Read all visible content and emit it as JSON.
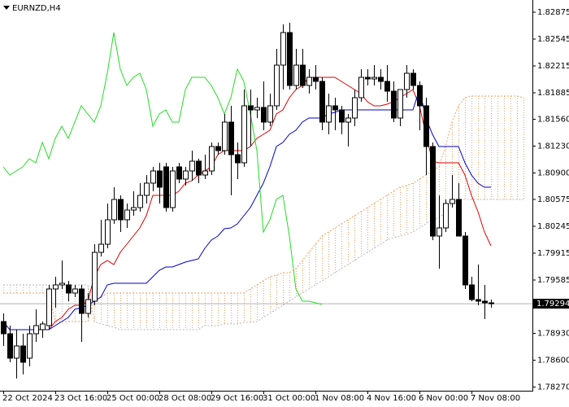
{
  "chart_data": {
    "type": "candlestick",
    "title": "EURNZD,H4",
    "categories": [
      "22 Oct 2024",
      null,
      null,
      null,
      null,
      null,
      null,
      null,
      "23 Oct 16:00",
      null,
      null,
      null,
      null,
      null,
      null,
      null,
      "25 Oct 00:00",
      null,
      null,
      null,
      null,
      null,
      null,
      null,
      "28 Oct 08:00",
      null,
      null,
      null,
      null,
      null,
      null,
      null,
      "29 Oct 16:00",
      null,
      null,
      null,
      null,
      null,
      null,
      null,
      "31 Oct 00:00",
      null,
      null,
      null,
      null,
      null,
      null,
      null,
      "1 Nov 08:00",
      null,
      null,
      null,
      null,
      null,
      null,
      null,
      "4 Nov 16:00",
      null,
      null,
      null,
      null,
      null,
      null,
      null,
      "6 Nov 00:00",
      null,
      null,
      null,
      null,
      null,
      null,
      null,
      "7 Nov 08:00",
      null,
      null,
      null,
      null,
      null,
      null,
      null,
      null,
      null
    ],
    "open": [
      1.79075,
      1.78925,
      1.78625,
      1.78775,
      1.78625,
      1.78925,
      1.78975,
      1.79025,
      1.79475,
      1.79525,
      1.79525,
      1.79425,
      1.79475,
      1.79175,
      1.79325,
      1.79925,
      1.80025,
      1.80325,
      1.80575,
      1.80325,
      1.80445,
      1.80475,
      1.80625,
      1.80775,
      1.80925,
      1.80975,
      1.80475,
      1.80975,
      1.80825,
      1.80925,
      1.81045,
      1.80875,
      1.80925,
      1.81225,
      1.81175,
      1.81525,
      1.81125,
      1.81025,
      1.81725,
      1.81675,
      1.81705,
      1.81525,
      1.81725,
      1.82225,
      1.82625,
      1.81975,
      1.82225,
      1.81975,
      1.82075,
      1.82025,
      1.81525,
      1.81725,
      1.81675,
      1.81525,
      1.81575,
      1.81825,
      1.82075,
      1.82055,
      1.82075,
      1.82025,
      1.81905,
      1.81575,
      1.81925,
      1.82125,
      1.81975,
      1.81725,
      1.81225,
      1.80125,
      1.80225,
      1.80525,
      1.80575,
      1.80125,
      1.79525,
      1.79345,
      1.79325,
      1.79305,
      null,
      null,
      null,
      null,
      null,
      null
    ],
    "high": [
      1.79175,
      1.79025,
      1.78975,
      1.78925,
      1.79025,
      1.79225,
      1.79075,
      1.79525,
      1.79625,
      1.79825,
      1.79575,
      1.79525,
      1.79525,
      1.79425,
      1.80025,
      1.80325,
      1.80525,
      1.80725,
      1.80625,
      1.80525,
      1.80675,
      1.80775,
      1.80875,
      1.80975,
      1.81025,
      1.81025,
      1.80975,
      1.81025,
      1.80975,
      1.81175,
      1.81075,
      1.81125,
      1.81275,
      1.81275,
      1.81625,
      1.81725,
      1.81275,
      1.81925,
      1.81925,
      1.81825,
      1.82025,
      1.81875,
      1.82425,
      1.82725,
      1.82745,
      1.82425,
      1.82425,
      1.82175,
      1.82225,
      1.82075,
      1.81875,
      1.81825,
      1.81725,
      1.81625,
      1.81925,
      1.82175,
      1.82175,
      1.82225,
      1.82175,
      1.82225,
      1.82025,
      1.81925,
      1.82225,
      1.82175,
      1.82025,
      1.81825,
      1.81275,
      1.80625,
      1.80575,
      1.80875,
      1.80775,
      1.80175,
      1.79625,
      1.79775,
      1.79525,
      1.79345,
      null,
      null,
      null,
      null,
      null,
      null
    ],
    "low": [
      1.78775,
      1.78575,
      1.78375,
      1.78425,
      1.78525,
      1.78825,
      1.78875,
      1.78975,
      1.79245,
      1.79475,
      1.79325,
      1.79375,
      1.78825,
      1.79125,
      1.79275,
      1.79875,
      1.79975,
      1.80275,
      1.80175,
      1.80225,
      1.80375,
      1.80425,
      1.80525,
      1.80675,
      1.80525,
      1.80425,
      1.80425,
      1.80775,
      1.80745,
      1.80805,
      1.80775,
      1.80825,
      1.80875,
      1.81125,
      1.81125,
      1.80625,
      1.80825,
      1.80975,
      1.81225,
      1.81575,
      1.81425,
      1.81475,
      1.81675,
      1.81925,
      1.81925,
      1.81925,
      1.81945,
      1.81875,
      1.81925,
      1.81425,
      1.81375,
      1.81425,
      1.81375,
      1.81225,
      1.81475,
      1.81775,
      1.81975,
      1.81975,
      1.81925,
      1.81775,
      1.81525,
      1.81475,
      1.81825,
      1.81925,
      1.81425,
      1.80875,
      1.80075,
      1.79725,
      1.80175,
      1.80475,
      1.80125,
      1.79475,
      1.79325,
      1.79275,
      1.79105,
      1.79245,
      null,
      null,
      null,
      null,
      null,
      null
    ],
    "close": [
      1.78925,
      1.78625,
      1.78775,
      1.78575,
      1.78925,
      1.79025,
      1.79045,
      1.79475,
      1.79525,
      1.79545,
      1.79425,
      1.79475,
      1.79175,
      1.79345,
      1.79925,
      1.80025,
      1.80325,
      1.80575,
      1.80325,
      1.80445,
      1.80475,
      1.80625,
      1.80775,
      1.80925,
      1.80725,
      1.80475,
      1.80925,
      1.80825,
      1.80925,
      1.81045,
      1.80875,
      1.80925,
      1.81225,
      1.81175,
      1.81525,
      1.81125,
      1.81025,
      1.81725,
      1.81675,
      1.81705,
      1.81525,
      1.81725,
      1.82225,
      1.82625,
      1.81975,
      1.82225,
      1.81975,
      1.82075,
      1.82025,
      1.81525,
      1.81725,
      1.81675,
      1.81525,
      1.81575,
      1.81825,
      1.82075,
      1.82055,
      1.82075,
      1.82025,
      1.81905,
      1.81575,
      1.81925,
      1.82125,
      1.81975,
      1.81725,
      1.81225,
      1.80125,
      1.80225,
      1.80525,
      1.80575,
      1.80125,
      1.79525,
      1.79345,
      1.79325,
      1.79305,
      1.79294,
      null,
      null,
      null,
      null,
      null,
      null
    ],
    "up_color": "#ffffff",
    "down_color": "#000000",
    "lines": [
      {
        "color": "#e00000",
        "values": [
          1.79075,
          1.78975,
          1.78975,
          1.78975,
          1.78975,
          1.78975,
          1.78975,
          1.78975,
          1.79075,
          1.79125,
          1.79225,
          1.79275,
          1.79275,
          1.79325,
          1.79625,
          1.79775,
          1.79825,
          1.79775,
          1.79925,
          1.80025,
          1.80125,
          1.80225,
          1.80375,
          1.80625,
          1.80625,
          1.80625,
          1.80625,
          1.80675,
          1.80775,
          1.80805,
          1.80875,
          1.80925,
          1.80975,
          1.81125,
          1.81175,
          1.81175,
          1.81175,
          1.81175,
          1.81225,
          1.81325,
          1.81375,
          1.81425,
          1.81625,
          1.81675,
          1.81825,
          1.81925,
          1.81975,
          1.82075,
          1.82075,
          1.82075,
          1.82075,
          1.82075,
          1.82025,
          1.81975,
          1.81925,
          1.81875,
          1.81775,
          1.81725,
          1.81725,
          1.81745,
          1.81775,
          1.81825,
          1.81875,
          1.81925,
          1.81725,
          1.81375,
          1.81045,
          1.81025,
          1.81025,
          1.81025,
          1.81025,
          1.80875,
          1.80625,
          1.80425,
          1.80175,
          1.80005,
          null,
          null,
          null,
          null,
          null,
          null
        ]
      },
      {
        "color": "#0000c8",
        "values": [
          1.79075,
          1.78975,
          1.78975,
          1.78975,
          1.78975,
          1.78975,
          1.78975,
          1.78975,
          1.79025,
          1.79075,
          1.79125,
          1.79225,
          1.79245,
          1.79275,
          1.79325,
          1.79375,
          1.79525,
          1.79545,
          1.79545,
          1.79545,
          1.79545,
          1.79545,
          1.79545,
          1.79625,
          1.79705,
          1.79745,
          1.79745,
          1.79775,
          1.79805,
          1.79825,
          1.79845,
          1.79975,
          1.80075,
          1.80125,
          1.80215,
          1.80225,
          1.80275,
          1.80375,
          1.80475,
          1.80625,
          1.80775,
          1.80975,
          1.81225,
          1.81275,
          1.81375,
          1.81425,
          1.81525,
          1.81575,
          1.81575,
          1.81575,
          1.81625,
          1.81645,
          1.81675,
          1.81675,
          1.81675,
          1.81675,
          1.81675,
          1.81675,
          1.81675,
          1.81675,
          1.81675,
          1.81675,
          1.81675,
          1.81675,
          1.81925,
          1.81575,
          1.81375,
          1.81225,
          1.81225,
          1.81225,
          1.81225,
          1.81025,
          1.80875,
          1.80775,
          1.80725,
          1.80725,
          null,
          null,
          null,
          null,
          null,
          null
        ]
      },
      {
        "color": "#22dd22",
        "values": [
          1.80975,
          1.80875,
          1.80925,
          1.80975,
          1.81075,
          1.81025,
          1.81275,
          1.81075,
          1.81325,
          1.81475,
          1.81325,
          1.81525,
          1.81725,
          1.81625,
          1.81525,
          1.81725,
          1.82125,
          1.82625,
          1.82175,
          1.81975,
          1.82075,
          1.82125,
          1.81925,
          1.81475,
          1.81625,
          1.81675,
          1.81525,
          1.81525,
          1.81925,
          1.82075,
          1.82075,
          1.82075,
          1.81975,
          1.81825,
          1.81625,
          1.81825,
          1.82175,
          1.82025,
          1.81625,
          1.81175,
          1.80175,
          1.80325,
          1.80575,
          1.80625,
          1.80125,
          1.79475,
          1.79325,
          1.79325,
          1.79305,
          1.79285,
          null,
          null,
          null,
          null,
          null,
          null,
          null,
          null,
          null,
          null,
          null,
          null,
          null,
          null,
          null,
          null,
          null,
          null,
          null,
          null,
          null,
          null,
          null,
          null,
          null,
          null,
          null,
          null,
          null,
          null,
          null,
          null
        ]
      }
    ],
    "cloud": {
      "up_color": "#f0a060",
      "down_color": "#b8b8b8",
      "span_a": [
        1.79425,
        1.79425,
        1.79425,
        1.79425,
        1.79425,
        1.79425,
        1.79425,
        1.79425,
        1.79075,
        1.79075,
        1.79075,
        1.79075,
        1.79075,
        1.79075,
        1.79325,
        1.79375,
        1.79425,
        1.79425,
        1.79425,
        1.79425,
        1.79425,
        1.79425,
        1.79425,
        1.79425,
        1.79425,
        1.79425,
        1.79425,
        1.79425,
        1.79425,
        1.79425,
        1.79425,
        1.79425,
        1.79425,
        1.79425,
        1.79425,
        1.79425,
        1.79425,
        1.79425,
        1.79475,
        1.79525,
        1.79575,
        1.79625,
        1.79645,
        1.79675,
        1.79675,
        1.79725,
        1.79825,
        1.79925,
        1.80025,
        1.80125,
        1.80175,
        1.80225,
        1.80275,
        1.80325,
        1.80375,
        1.80425,
        1.80475,
        1.80525,
        1.80575,
        1.80625,
        1.80675,
        1.80725,
        1.80745,
        1.80775,
        1.80825,
        1.80875,
        1.80925,
        1.80975,
        1.81225,
        1.81525,
        1.81725,
        1.81825,
        1.81845,
        1.81845,
        1.81845,
        1.81845,
        1.81845,
        1.81845,
        1.81845,
        1.81845,
        1.81825,
        null
      ],
      "span_b": [
        1.79525,
        1.79525,
        1.79525,
        1.79525,
        1.79525,
        1.79525,
        1.79525,
        1.79525,
        1.79525,
        1.79525,
        1.79525,
        1.79525,
        1.79525,
        1.79525,
        1.79075,
        1.79045,
        1.79025,
        1.79005,
        1.78975,
        1.78975,
        1.78975,
        1.78975,
        1.78975,
        1.78975,
        1.78975,
        1.78975,
        1.78975,
        1.78975,
        1.78975,
        1.78975,
        1.78975,
        1.79025,
        1.79025,
        1.79025,
        1.79045,
        1.79045,
        1.79045,
        1.79065,
        1.79065,
        1.79075,
        1.79125,
        1.79175,
        1.79225,
        1.79275,
        1.79325,
        1.79375,
        1.79425,
        1.79475,
        1.79525,
        1.79575,
        1.79625,
        1.79675,
        1.79725,
        1.79775,
        1.79825,
        1.79875,
        1.79925,
        1.79975,
        1.80025,
        1.80075,
        1.80105,
        1.80125,
        1.80145,
        1.80175,
        1.80225,
        1.80275,
        1.80325,
        1.80345,
        1.80425,
        1.80525,
        1.80575,
        1.80575,
        1.80575,
        1.80575,
        1.80575,
        1.80575,
        1.80575,
        1.80575,
        1.80575,
        1.80575,
        1.80575,
        null
      ]
    },
    "ylim": [
      1.78225,
      1.83025
    ],
    "yticks": [
      1.82875,
      1.82545,
      1.82215,
      1.81885,
      {
        "value": 1.8156,
        "label": "1.81560"
      },
      {
        "value": 1.8123,
        "label": "1.81230"
      },
      {
        "value": 1.809,
        "label": "1.80900"
      },
      1.80575,
      1.80245,
      1.79915,
      1.79585,
      {
        "value": 1.7893,
        "label": "1.78930"
      },
      {
        "value": 1.786,
        "label": "1.78600"
      },
      {
        "value": 1.7827,
        "label": "1.78270"
      }
    ],
    "grid": false
  }
}
